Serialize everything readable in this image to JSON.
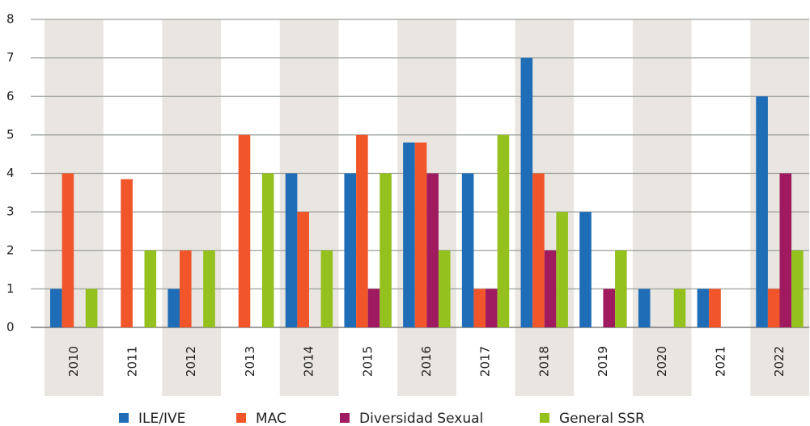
{
  "chart_data": {
    "type": "bar",
    "categories": [
      "2010",
      "2011",
      "2012",
      "2013",
      "2014",
      "2015",
      "2016",
      "2017",
      "2018",
      "2019",
      "2020",
      "2021",
      "2022"
    ],
    "series": [
      {
        "name": "ILE/IVE",
        "color": "#1f6db6",
        "values": [
          1,
          0,
          1,
          0,
          4,
          4,
          4.8,
          4,
          7,
          3,
          1,
          1,
          6
        ]
      },
      {
        "name": "MAC",
        "color": "#f0562a",
        "values": [
          4,
          3.85,
          2,
          5,
          3,
          5,
          4.8,
          1,
          4,
          0,
          0,
          1,
          1
        ]
      },
      {
        "name": "Diversidad Sexual",
        "color": "#a01a5f",
        "values": [
          0,
          0,
          0,
          0,
          0,
          1,
          4,
          1,
          2,
          1,
          0,
          0,
          4
        ]
      },
      {
        "name": "General SSR",
        "color": "#95c11f",
        "values": [
          1,
          2,
          2,
          4,
          2,
          4,
          2,
          5,
          3,
          2,
          1,
          0,
          2
        ]
      }
    ],
    "ylim": [
      0,
      8
    ],
    "yticks": [
      0,
      1,
      2,
      3,
      4,
      5,
      6,
      7,
      8
    ],
    "grid": true
  }
}
